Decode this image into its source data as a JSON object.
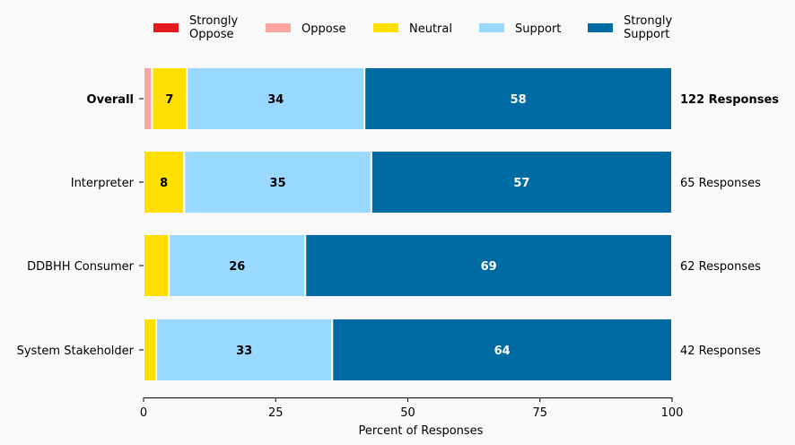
{
  "chart_data": {
    "type": "bar",
    "orientation": "horizontal",
    "stacked": true,
    "title": "",
    "xlabel": "Percent of Responses",
    "ylabel": "",
    "xlim": [
      0,
      100
    ],
    "xticks": [
      0,
      25,
      50,
      75,
      100
    ],
    "grid": false,
    "legend_position": "top",
    "legend": [
      {
        "label": "Strongly\nOppose",
        "lines": [
          "Strongly",
          "Oppose"
        ],
        "color": "#e31a1c"
      },
      {
        "label": "Oppose",
        "lines": [
          "Oppose"
        ],
        "color": "#fca49f"
      },
      {
        "label": "Neutral",
        "lines": [
          "Neutral"
        ],
        "color": "#ffdf00"
      },
      {
        "label": "Support",
        "lines": [
          "Support"
        ],
        "color": "#99d8ff"
      },
      {
        "label": "Strongly\nSupport",
        "lines": [
          "Strongly",
          "Support"
        ],
        "color": "#006aa3"
      }
    ],
    "categories": [
      "Overall",
      "Interpreter",
      "DDBHH Consumer",
      "System Stakeholder"
    ],
    "category_bold": [
      true,
      false,
      false,
      false
    ],
    "series": [
      {
        "name": "Strongly Oppose",
        "color": "#e31a1c",
        "values": [
          0,
          0,
          0,
          0
        ]
      },
      {
        "name": "Oppose",
        "color": "#fca49f",
        "values": [
          1.6,
          0,
          0,
          0
        ]
      },
      {
        "name": "Neutral",
        "color": "#ffdf00",
        "values": [
          6.6,
          7.7,
          4.8,
          2.4
        ]
      },
      {
        "name": "Support",
        "color": "#99d8ff",
        "values": [
          33.6,
          35.4,
          25.8,
          33.3
        ]
      },
      {
        "name": "Strongly Support",
        "color": "#006aa3",
        "values": [
          58.2,
          56.9,
          69.4,
          64.3
        ]
      }
    ],
    "data_labels": [
      [
        "",
        "",
        "7",
        "34",
        "58"
      ],
      [
        "",
        "",
        "8",
        "35",
        "57"
      ],
      [
        "",
        "",
        "",
        "26",
        "69"
      ],
      [
        "",
        "",
        "",
        "33",
        "64"
      ]
    ],
    "data_label_colors": [
      "#000000",
      "#000000",
      "#000000",
      "#000000",
      "#ffffff"
    ],
    "response_counts": [
      "122 Responses",
      "65 Responses",
      "62 Responses",
      "42 Responses"
    ]
  }
}
